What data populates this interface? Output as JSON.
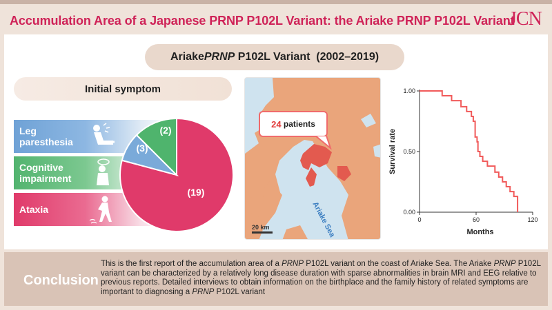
{
  "header": {
    "title": "Accumulation Area of a Japanese PRNP P102L Variant: the Ariake PRNP P102L Variant",
    "logo": "JCN"
  },
  "subtitle": {
    "prefix": "Ariake ",
    "gene": "PRNP",
    "suffix": " P102L Variant  (2002–2019)"
  },
  "symptoms": {
    "heading": "Initial symptom",
    "items": [
      {
        "label_line1": "Leg",
        "label_line2": "paresthesia",
        "count_label": "(2)",
        "count": 2,
        "color": "#7aaad9"
      },
      {
        "label_line1": "Cognitive",
        "label_line2": "impairment",
        "count_label": "(3)",
        "count": 3,
        "color": "#4fb46d"
      },
      {
        "label_line1": "Ataxia",
        "label_line2": "",
        "count_label": "(19)",
        "count": 19,
        "color": "#e03a6a"
      }
    ]
  },
  "map": {
    "count": "24",
    "count_suffix": " patients",
    "sea_label": "Ariake Sea",
    "scale_label": "20 km"
  },
  "chart_data": {
    "type": "line",
    "step": true,
    "xlabel": "Months",
    "ylabel": "Survival rate",
    "xlim": [
      0,
      120
    ],
    "ylim": [
      0,
      1
    ],
    "xticks": [
      "0",
      "60",
      "120"
    ],
    "yticks": [
      "0.00",
      "0.50",
      "1.00"
    ],
    "series": [
      {
        "color": "#f15a5a",
        "points": [
          [
            0,
            1.0
          ],
          [
            24,
            1.0
          ],
          [
            24,
            0.96
          ],
          [
            34,
            0.96
          ],
          [
            34,
            0.92
          ],
          [
            44,
            0.92
          ],
          [
            44,
            0.87
          ],
          [
            50,
            0.87
          ],
          [
            50,
            0.83
          ],
          [
            55,
            0.83
          ],
          [
            55,
            0.79
          ],
          [
            57,
            0.79
          ],
          [
            57,
            0.75
          ],
          [
            59,
            0.75
          ],
          [
            59,
            0.62
          ],
          [
            61,
            0.62
          ],
          [
            61,
            0.58
          ],
          [
            62,
            0.58
          ],
          [
            62,
            0.5
          ],
          [
            64,
            0.5
          ],
          [
            64,
            0.46
          ],
          [
            67,
            0.46
          ],
          [
            67,
            0.42
          ],
          [
            72,
            0.42
          ],
          [
            72,
            0.38
          ],
          [
            80,
            0.38
          ],
          [
            80,
            0.33
          ],
          [
            84,
            0.33
          ],
          [
            84,
            0.29
          ],
          [
            88,
            0.29
          ],
          [
            88,
            0.25
          ],
          [
            92,
            0.25
          ],
          [
            92,
            0.21
          ],
          [
            96,
            0.21
          ],
          [
            96,
            0.17
          ],
          [
            100,
            0.17
          ],
          [
            100,
            0.13
          ],
          [
            104,
            0.13
          ],
          [
            104,
            0.0
          ]
        ]
      }
    ]
  },
  "conclusion": {
    "label": "Conclusion",
    "t1": "This is the first report of the accumulation area of a ",
    "t2": "PRNP",
    "t3": " P102L variant on the coast of Ariake Sea. The Ariake ",
    "t4": "PRNP",
    "t5": " P102L variant can be characterized by a relatively long disease duration with sparse abnormalities in brain MRI and EEG relative to previous reports. Detailed interviews to obtain information on the birthplace and the family history of related symptoms are important to diagnosing a ",
    "t6": "PRNP",
    "t7": " P102L variant"
  }
}
